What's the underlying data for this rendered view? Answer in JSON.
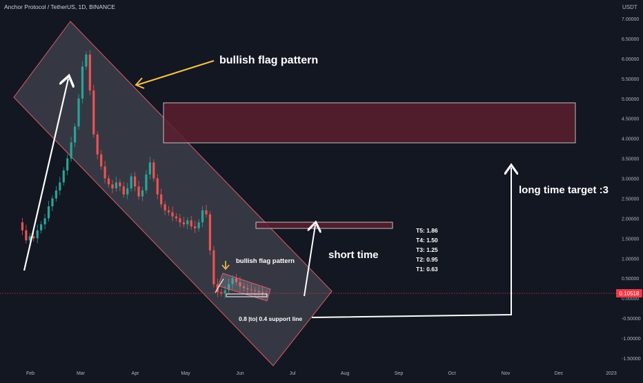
{
  "header": {
    "symbol_line": "Anchor Protocol / TetherUS, 1D, BINANCE",
    "currency": "USDT"
  },
  "price_tag": "0.10518",
  "chart_data": {
    "type": "candlestick",
    "title": "Anchor Protocol / TetherUS, 1D, BINANCE",
    "y_unit": "USDT",
    "ylim": [
      -1.5,
      7.0
    ],
    "y_ticks": [
      "7.00000",
      "6.50000",
      "6.00000",
      "5.50000",
      "5.00000",
      "4.50000",
      "4.00000",
      "3.50000",
      "3.00000",
      "2.50000",
      "2.00000",
      "1.50000",
      "1.00000",
      "0.50000",
      "0.00000",
      "-0.50000",
      "-1.00000",
      "-1.50000"
    ],
    "x_labels": [
      "Feb",
      "Mar",
      "Apr",
      "May",
      "Jun",
      "Jul",
      "Aug",
      "Sep",
      "Oct",
      "Nov",
      "Dec",
      "2023"
    ],
    "last_price": 0.10518,
    "price_path": [
      1.9,
      1.7,
      1.45,
      1.55,
      1.5,
      1.7,
      1.85,
      2.0,
      2.3,
      2.5,
      2.7,
      2.9,
      3.2,
      3.5,
      3.9,
      4.3,
      5.0,
      5.8,
      6.1,
      5.2,
      4.1,
      3.6,
      3.3,
      3.0,
      2.85,
      2.75,
      2.9,
      2.8,
      2.6,
      2.75,
      3.05,
      2.8,
      2.55,
      2.7,
      3.1,
      3.4,
      3.0,
      2.6,
      2.35,
      2.2,
      2.15,
      2.05,
      2.0,
      1.9,
      1.85,
      1.95,
      1.8,
      1.75,
      1.9,
      2.2,
      2.1,
      1.2,
      0.35,
      0.15,
      0.12,
      0.2,
      0.35,
      0.5,
      0.4,
      0.3,
      0.25,
      0.22,
      0.2,
      0.18,
      0.15,
      0.12,
      0.1
    ],
    "targets": [
      {
        "label": "T5: 1.86"
      },
      {
        "label": "T4: 1.50"
      },
      {
        "label": "T3: 1.25"
      },
      {
        "label": "T2: 0.95"
      },
      {
        "label": "T1: 0.63"
      }
    ],
    "annotations": {
      "flag_main": "bullish flag pattern",
      "flag_small": "bullish flag pattern",
      "short_term": "short time",
      "long_term": "long time target :3",
      "support": "0.8  |to|  0.4 support line"
    },
    "zones": [
      {
        "name": "long-term-target-zone",
        "y_range": [
          3.9,
          4.9
        ],
        "color": "#5a1f2e"
      },
      {
        "name": "short-term-target-zone",
        "y_range": [
          1.78,
          1.93
        ],
        "color": "#5a1f2e"
      }
    ],
    "colors": {
      "up": "#26a69a",
      "down": "#ef5350",
      "channel": "#8d8f99",
      "arrow_yellow": "#f7c14a",
      "price_tag": "#f23645"
    }
  }
}
